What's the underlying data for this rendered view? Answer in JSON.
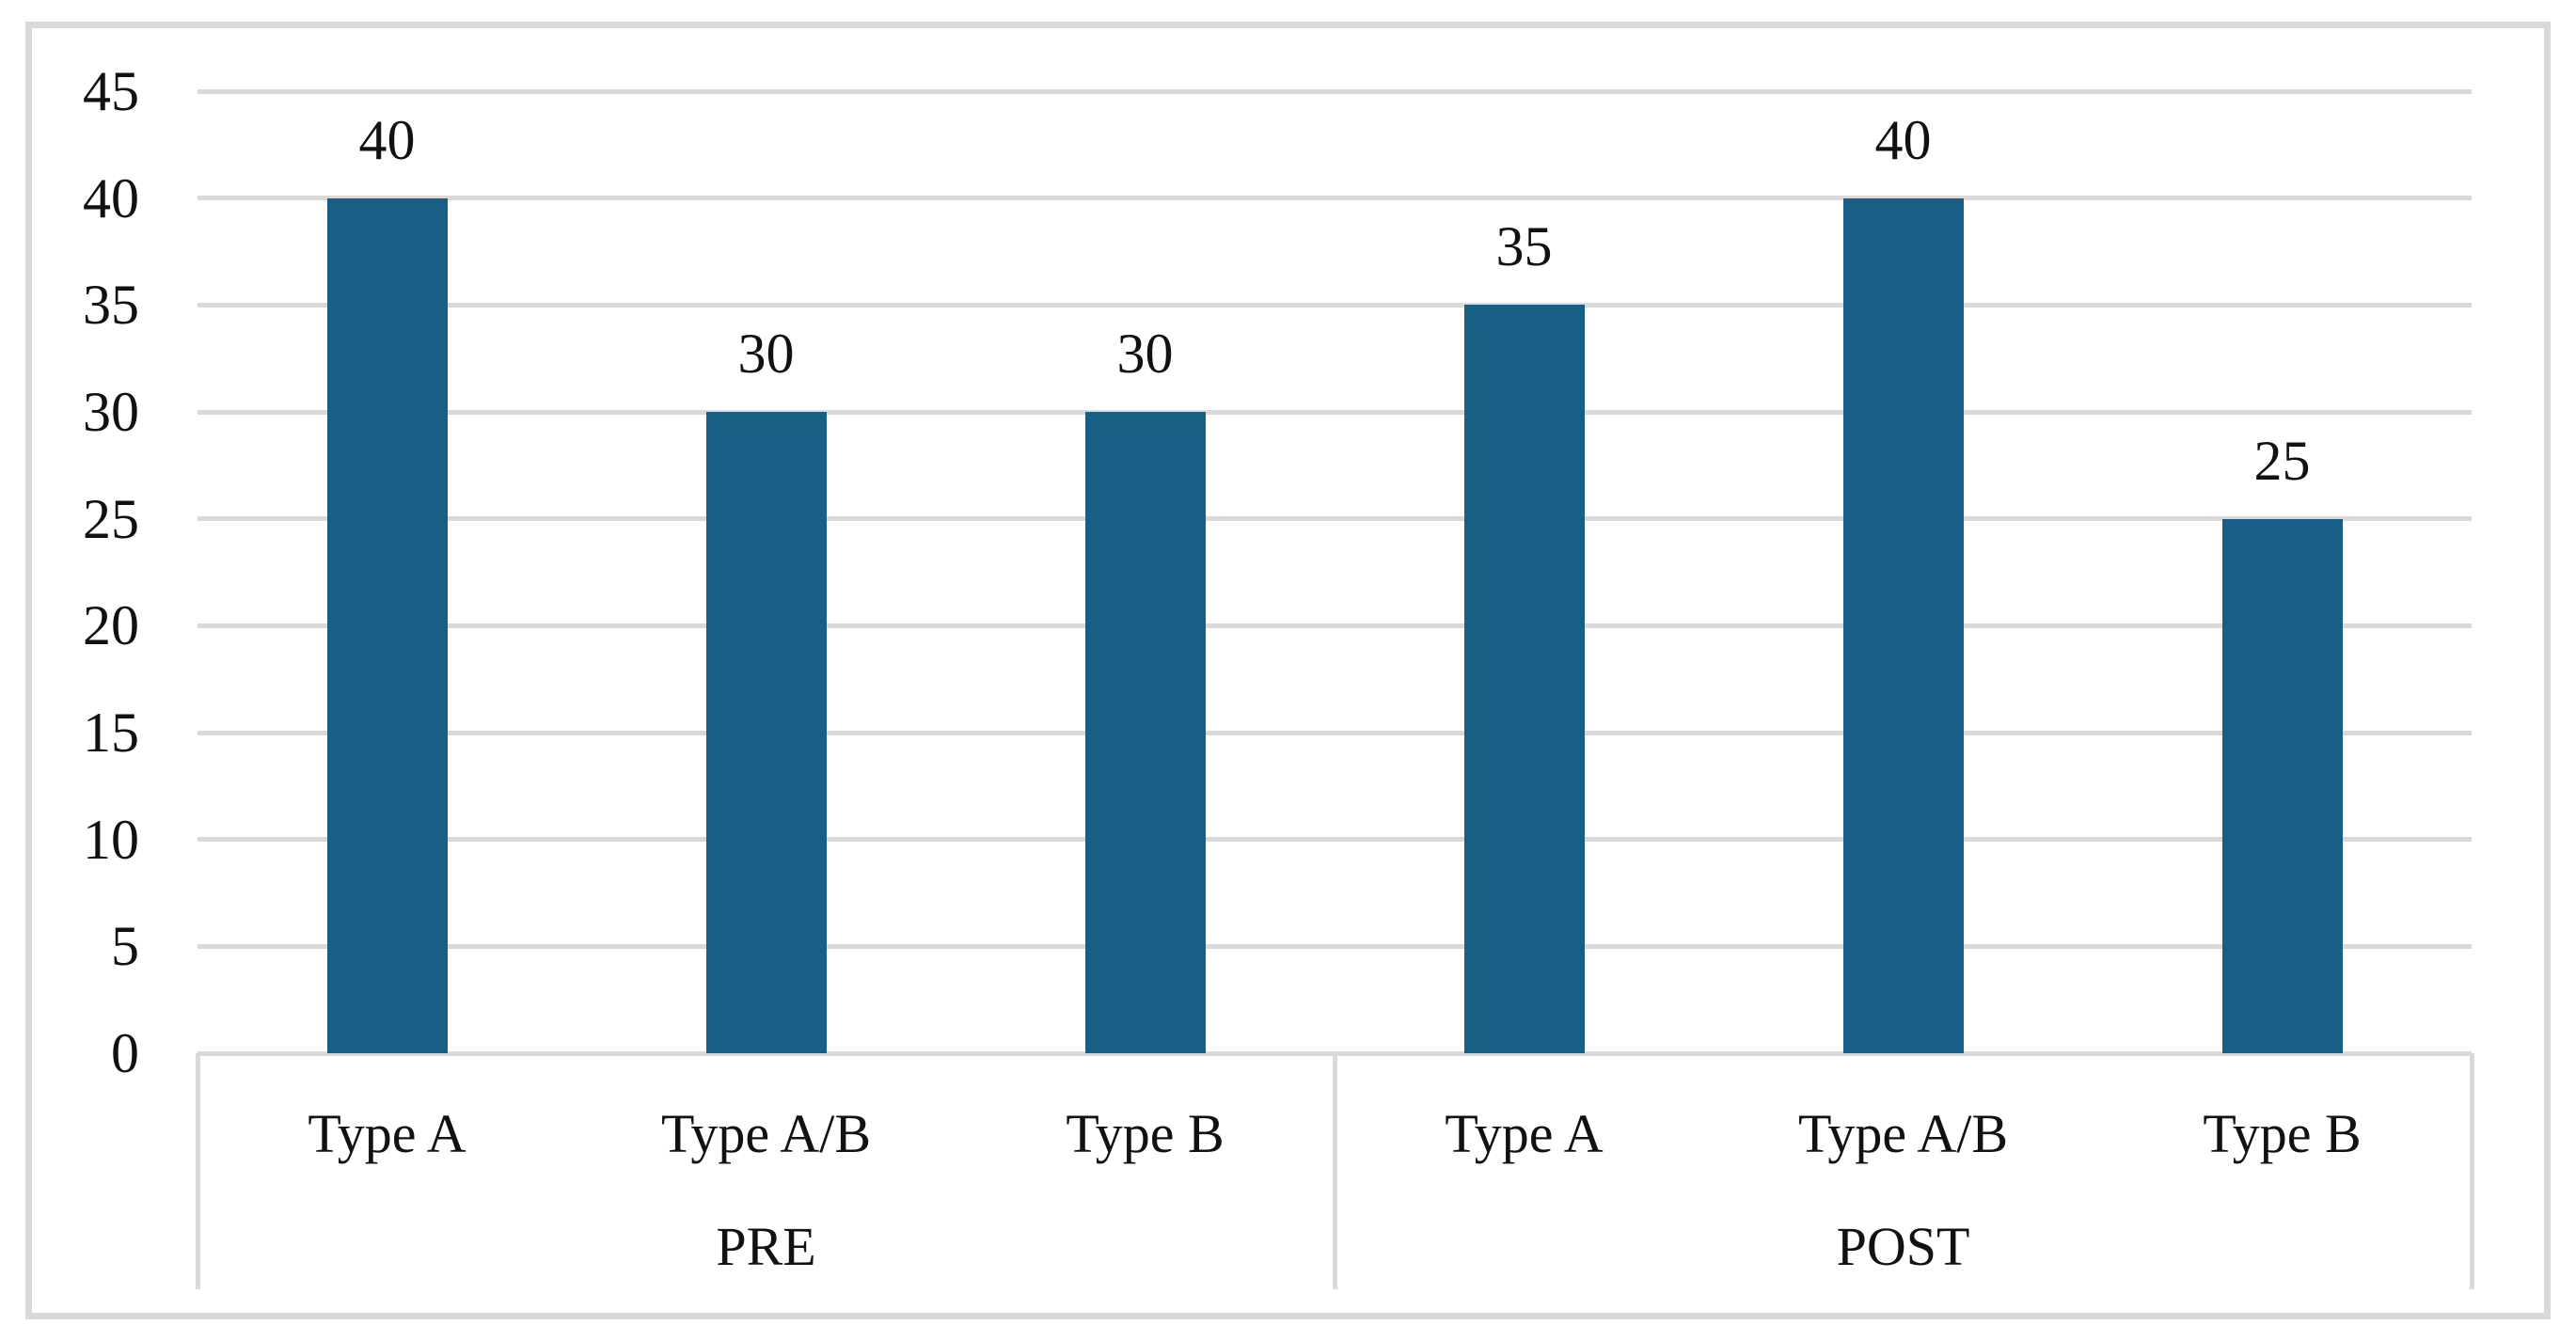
{
  "chart_data": {
    "type": "bar",
    "title": "",
    "x_groups": [
      {
        "label": "PRE",
        "categories": [
          "Type A",
          "Type A/B",
          "Type B"
        ],
        "values": [
          40,
          30,
          30
        ]
      },
      {
        "label": "POST",
        "categories": [
          "Type A",
          "Type A/B",
          "Type B"
        ],
        "values": [
          35,
          40,
          25
        ]
      }
    ],
    "data_labels": [
      "40",
      "30",
      "30",
      "35",
      "40",
      "25"
    ],
    "yticks": [
      45,
      40,
      35,
      30,
      25,
      20,
      15,
      10,
      5,
      0
    ],
    "ylim": [
      0,
      45
    ],
    "ytick_step": 5,
    "grid": true,
    "legend_position": "none",
    "xlabel": "",
    "ylabel": "",
    "colors": {
      "bar": "#175F85",
      "gridline": "#D9D9D9",
      "frame_border": "#D9D9D9",
      "axis_box_line": "#D9D9D9",
      "text": "#111111",
      "background": "#FFFFFF"
    }
  }
}
